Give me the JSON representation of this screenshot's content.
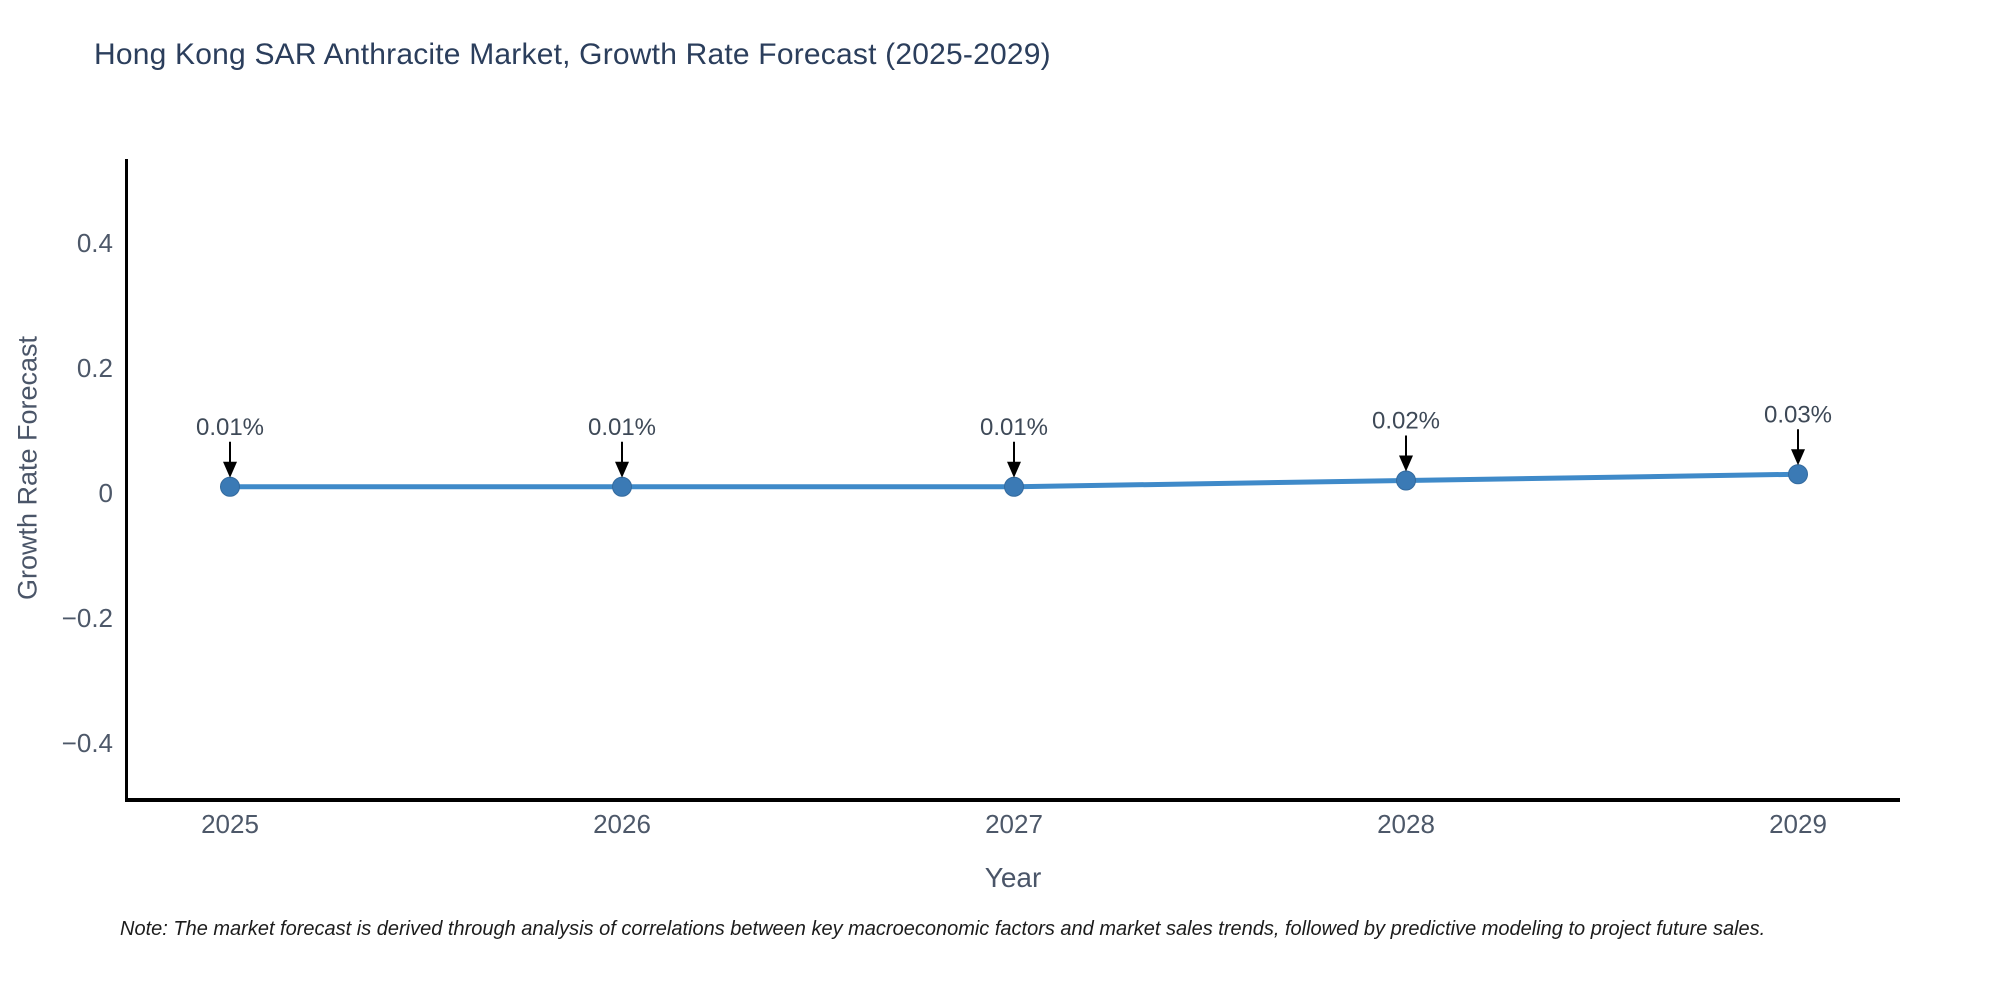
{
  "title": "Hong Kong SAR Anthracite Market, Growth Rate Forecast (2025-2029)",
  "note": "Note: The market forecast is derived through analysis of correlations between key macroeconomic factors and market sales trends, followed by predictive modeling to project future sales.",
  "chart_data": {
    "type": "line",
    "title": "Hong Kong SAR Anthracite Market, Growth Rate Forecast (2025-2029)",
    "xlabel": "Year",
    "ylabel": "Growth Rate Forecast",
    "categories": [
      "2025",
      "2026",
      "2027",
      "2028",
      "2029"
    ],
    "x": [
      2025,
      2026,
      2027,
      2028,
      2029
    ],
    "values": [
      0.01,
      0.01,
      0.01,
      0.02,
      0.03
    ],
    "point_labels": [
      "0.01%",
      "0.01%",
      "0.01%",
      "0.02%",
      "0.03%"
    ],
    "yticks": [
      0.4,
      0.2,
      0,
      -0.2,
      -0.4
    ],
    "ytick_labels": [
      "0.4",
      "0.2",
      "0",
      "−0.2",
      "−0.4"
    ],
    "ylim": [
      -0.5,
      0.55
    ],
    "grid": false,
    "legend": null,
    "line_color": "#3f8ac9",
    "marker_color": "#3b7ab5",
    "marker_edge_color": "#336a9e",
    "axis_color": "#000000",
    "tick_label_color": "#4d5869",
    "annotation_color": "#3e4957",
    "arrow_color": "#000000"
  }
}
